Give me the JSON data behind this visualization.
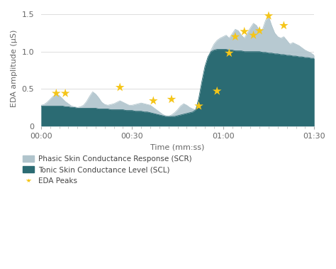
{
  "xlabel": "Time (mm:ss)",
  "ylabel": "EDA amplitude (μS)",
  "xlim": [
    0,
    90
  ],
  "ylim": [
    0,
    1.55
  ],
  "yticks": [
    0,
    0.5,
    1.0,
    1.5
  ],
  "xtick_positions": [
    0,
    30,
    60,
    90
  ],
  "xtick_labels": [
    "00:00",
    "00:30",
    "01:00",
    "01:30"
  ],
  "scr_color": "#b0c4cc",
  "scl_color": "#2b6b73",
  "peak_color": "#f5c518",
  "background_color": "#ffffff",
  "grid_color": "#dddddd",
  "scr_x": [
    0,
    1,
    2,
    3,
    4,
    5,
    6,
    7,
    8,
    9,
    10,
    11,
    12,
    13,
    14,
    15,
    16,
    17,
    18,
    19,
    20,
    21,
    22,
    23,
    24,
    25,
    26,
    27,
    28,
    29,
    30,
    31,
    32,
    33,
    34,
    35,
    36,
    37,
    38,
    39,
    40,
    41,
    42,
    43,
    44,
    45,
    46,
    47,
    48,
    49,
    50,
    51,
    52,
    53,
    54,
    55,
    56,
    57,
    58,
    59,
    60,
    61,
    62,
    63,
    64,
    65,
    66,
    67,
    68,
    69,
    70,
    71,
    72,
    73,
    74,
    75,
    76,
    77,
    78,
    79,
    80,
    81,
    82,
    83,
    84,
    85,
    86,
    87,
    88,
    89,
    90
  ],
  "scr_y": [
    0.28,
    0.29,
    0.32,
    0.36,
    0.4,
    0.43,
    0.41,
    0.37,
    0.33,
    0.3,
    0.27,
    0.26,
    0.25,
    0.26,
    0.28,
    0.33,
    0.4,
    0.46,
    0.43,
    0.38,
    0.32,
    0.29,
    0.28,
    0.29,
    0.3,
    0.32,
    0.34,
    0.32,
    0.3,
    0.28,
    0.28,
    0.29,
    0.3,
    0.31,
    0.3,
    0.29,
    0.28,
    0.25,
    0.22,
    0.19,
    0.16,
    0.14,
    0.13,
    0.15,
    0.18,
    0.22,
    0.27,
    0.3,
    0.28,
    0.25,
    0.23,
    0.22,
    0.3,
    0.5,
    0.72,
    0.9,
    1.02,
    1.1,
    1.15,
    1.18,
    1.2,
    1.22,
    1.18,
    1.24,
    1.3,
    1.28,
    1.22,
    1.18,
    1.25,
    1.32,
    1.38,
    1.35,
    1.28,
    1.3,
    1.42,
    1.47,
    1.35,
    1.25,
    1.2,
    1.18,
    1.2,
    1.15,
    1.1,
    1.12,
    1.1,
    1.08,
    1.05,
    1.02,
    1.0,
    0.98,
    0.95
  ],
  "scl_x": [
    0,
    1,
    2,
    3,
    4,
    5,
    6,
    7,
    8,
    9,
    10,
    11,
    12,
    13,
    14,
    15,
    16,
    17,
    18,
    19,
    20,
    21,
    22,
    23,
    24,
    25,
    26,
    27,
    28,
    29,
    30,
    31,
    32,
    33,
    34,
    35,
    36,
    37,
    38,
    39,
    40,
    41,
    42,
    43,
    44,
    45,
    46,
    47,
    48,
    49,
    50,
    51,
    52,
    53,
    54,
    55,
    56,
    57,
    58,
    59,
    60,
    61,
    62,
    63,
    64,
    65,
    66,
    67,
    68,
    69,
    70,
    71,
    72,
    73,
    74,
    75,
    76,
    77,
    78,
    79,
    80,
    81,
    82,
    83,
    84,
    85,
    86,
    87,
    88,
    89,
    90
  ],
  "scl_y": [
    0.27,
    0.27,
    0.27,
    0.27,
    0.27,
    0.27,
    0.27,
    0.27,
    0.26,
    0.26,
    0.25,
    0.25,
    0.24,
    0.24,
    0.24,
    0.24,
    0.24,
    0.24,
    0.24,
    0.23,
    0.23,
    0.23,
    0.23,
    0.22,
    0.22,
    0.22,
    0.22,
    0.22,
    0.21,
    0.21,
    0.21,
    0.2,
    0.2,
    0.2,
    0.19,
    0.19,
    0.18,
    0.17,
    0.16,
    0.15,
    0.14,
    0.13,
    0.13,
    0.13,
    0.13,
    0.14,
    0.15,
    0.16,
    0.17,
    0.18,
    0.19,
    0.22,
    0.38,
    0.6,
    0.8,
    0.93,
    1.0,
    1.02,
    1.03,
    1.03,
    1.03,
    1.03,
    1.02,
    1.02,
    1.01,
    1.01,
    1.01,
    1.0,
    1.0,
    1.0,
    1.0,
    1.0,
    1.0,
    0.99,
    0.99,
    0.98,
    0.98,
    0.97,
    0.97,
    0.96,
    0.96,
    0.95,
    0.95,
    0.94,
    0.94,
    0.93,
    0.93,
    0.92,
    0.92,
    0.91,
    0.91
  ],
  "peaks_x": [
    5,
    8,
    26,
    37,
    43,
    52,
    58,
    62,
    64,
    67,
    70,
    72,
    75,
    80
  ],
  "peaks_y": [
    0.44,
    0.44,
    0.52,
    0.34,
    0.36,
    0.27,
    0.47,
    0.98,
    1.2,
    1.27,
    1.22,
    1.28,
    1.48,
    1.35
  ],
  "legend_labels": [
    "Phasic Skin Conductance Response (SCR)",
    "Tonic Skin Conductance Level (SCL)",
    "EDA Peaks"
  ]
}
